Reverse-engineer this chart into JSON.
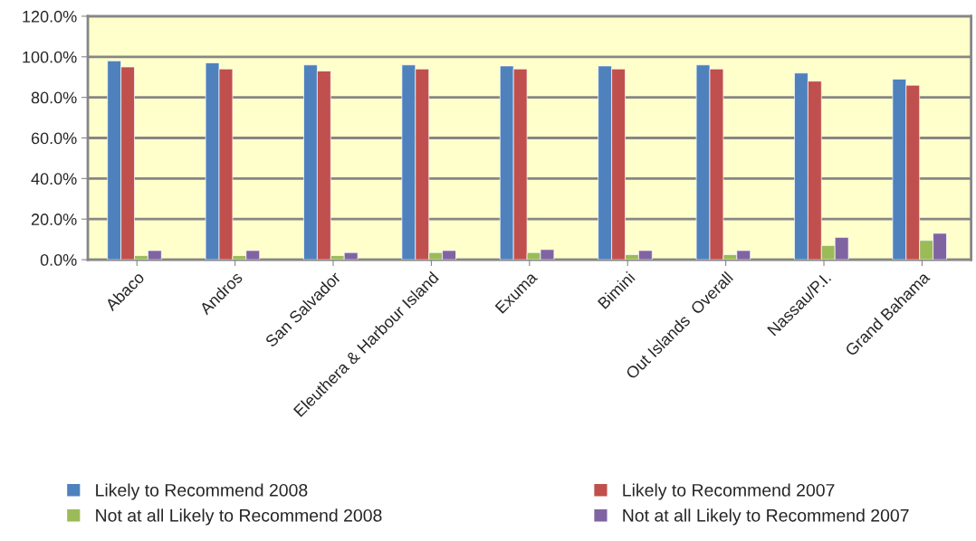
{
  "chart_data": {
    "type": "bar",
    "categories": [
      "Abaco",
      "Andros",
      "San Salvador",
      "Eleuthera & Harbour Island",
      "Exuma",
      "Bimini",
      "Out Islands  Overall",
      "Nassau/P.I.",
      "Grand Bahama"
    ],
    "series": [
      {
        "name": "Likely to Recommend 2008",
        "color": "#4f81bd",
        "values": [
          98,
          97,
          96,
          96,
          95.5,
          95.5,
          96,
          92,
          89
        ]
      },
      {
        "name": "Likely to Recommend 2007",
        "color": "#c0504d",
        "values": [
          95,
          94,
          93,
          94,
          94,
          94,
          94,
          88,
          86
        ]
      },
      {
        "name": "Not at all Likely to Recommend 2008",
        "color": "#9bbb59",
        "values": [
          2,
          2,
          2,
          3.5,
          3.5,
          2.5,
          2.5,
          7,
          9.5
        ]
      },
      {
        "name": "Not at all Likely to Recommend 2007",
        "color": "#8064a2",
        "values": [
          4.5,
          4.5,
          3.5,
          4.5,
          5,
          4.5,
          4.5,
          11,
          13
        ]
      }
    ],
    "ylim": [
      0,
      120
    ],
    "yticks": [
      {
        "value": 0,
        "label": "0.0%"
      },
      {
        "value": 20,
        "label": "20.0%"
      },
      {
        "value": 40,
        "label": "40.0%"
      },
      {
        "value": 60,
        "label": "60.0%"
      },
      {
        "value": 80,
        "label": "80.0%"
      },
      {
        "value": 100,
        "label": "100.0%"
      },
      {
        "value": 120,
        "label": "120.0%"
      }
    ],
    "grid": "y",
    "legend": "bottom"
  }
}
